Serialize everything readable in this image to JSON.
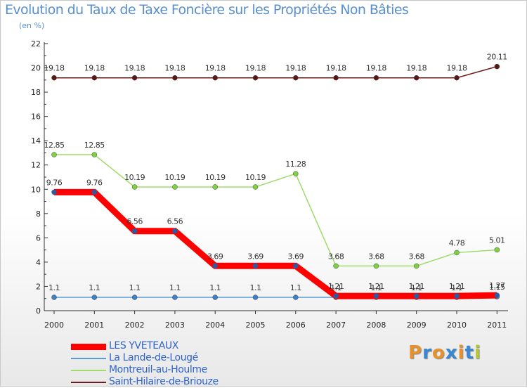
{
  "header": {
    "title": "Evolution du Taux de Taxe Foncière sur les Propriétés Non Bâties",
    "subtitle": "(en %)"
  },
  "chart_data": {
    "type": "line",
    "title": "Evolution du Taux de Taxe Foncière sur les Propriétés Non Bâties",
    "ylabel": "(en %)",
    "xlabel": "",
    "categories": [
      "2000",
      "2001",
      "2002",
      "2003",
      "2004",
      "2005",
      "2006",
      "2007",
      "2008",
      "2009",
      "2010",
      "2011"
    ],
    "yticks": [
      "0",
      "2",
      "4",
      "6",
      "8",
      "10",
      "12",
      "14",
      "16",
      "18",
      "20",
      "22"
    ],
    "ylim": [
      0,
      22
    ],
    "grid": false,
    "legend_position": "bottom-left",
    "series": [
      {
        "name": "Saint-Hilaire-de-Briouze",
        "color": "#6b1f1f",
        "marker": "#5a1515",
        "thick": false,
        "values": [
          19.18,
          19.18,
          19.18,
          19.18,
          19.18,
          19.18,
          19.18,
          19.18,
          19.18,
          19.18,
          19.18,
          20.11
        ],
        "labels": [
          "19.18",
          "19.18",
          "19.18",
          "19.18",
          "19.18",
          "19.18",
          "19.18",
          "19.18",
          "19.18",
          "19.18",
          "19.18",
          "20.11"
        ]
      },
      {
        "name": "Montreuil-au-Houlme",
        "color": "#9fdc6a",
        "marker": "#7ed23f",
        "thick": false,
        "values": [
          12.85,
          12.85,
          10.19,
          10.19,
          10.19,
          10.19,
          11.28,
          3.68,
          3.68,
          3.68,
          4.78,
          5.01
        ],
        "labels": [
          "12.85",
          "12.85",
          "10.19",
          "10.19",
          "10.19",
          "10.19",
          "11.28",
          "3.68",
          "3.68",
          "3.68",
          "4.78",
          "5.01"
        ]
      },
      {
        "name": "La Lande-de-Lougé",
        "color": "#5b9bd5",
        "marker": "#3f7fc6",
        "thick": false,
        "values": [
          1.1,
          1.1,
          1.1,
          1.1,
          1.1,
          1.1,
          1.1,
          1.1,
          1.1,
          1.1,
          1.1,
          1.15
        ],
        "labels": [
          "1.1",
          "1.1",
          "1.1",
          "1.1",
          "1.1",
          "1.1",
          "1.1",
          "1.1",
          "1.1",
          "1.1",
          "1.1",
          "1.15"
        ]
      },
      {
        "name": "LES YVETEAUX",
        "color": "#ff0000",
        "marker": "#ff0000",
        "thick": true,
        "values": [
          9.76,
          9.76,
          6.56,
          6.56,
          3.69,
          3.69,
          3.69,
          1.21,
          1.21,
          1.21,
          1.21,
          1.27
        ],
        "labels": [
          "9.76",
          "9.76",
          "6.56",
          "6.56",
          "3.69",
          "3.69",
          "3.69",
          "1.21",
          "1.21",
          "1.21",
          "1.21",
          "1.27"
        ]
      }
    ],
    "legend": [
      {
        "name": "LES YVETEAUX",
        "color": "#ff0000",
        "thick": true
      },
      {
        "name": "La Lande-de-Lougé",
        "color": "#5b9bd5",
        "thick": false
      },
      {
        "name": "Montreuil-au-Houlme",
        "color": "#9fdc6a",
        "thick": false
      },
      {
        "name": "Saint-Hilaire-de-Briouze",
        "color": "#6b1f1f",
        "thick": false
      }
    ]
  },
  "logo": {
    "text": "Proxiti",
    "letters": [
      {
        "ch": "P",
        "color": "#e8912b"
      },
      {
        "ch": "r",
        "color": "#3a87d1"
      },
      {
        "ch": "o",
        "color": "#e8912b"
      },
      {
        "ch": "x",
        "color": "#3a87d1"
      },
      {
        "ch": "i",
        "color": "#e8912b"
      },
      {
        "ch": "t",
        "color": "#3a87d1"
      },
      {
        "ch": "i",
        "color": "#b5c93b"
      }
    ]
  }
}
